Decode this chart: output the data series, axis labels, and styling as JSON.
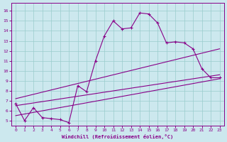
{
  "xlabel": "Windchill (Refroidissement éolien,°C)",
  "bg_color": "#cce8ee",
  "line_color": "#880088",
  "grid_color": "#99cccc",
  "x_ticks": [
    0,
    1,
    2,
    3,
    4,
    5,
    6,
    7,
    8,
    9,
    10,
    11,
    12,
    13,
    14,
    15,
    16,
    17,
    18,
    19,
    20,
    21,
    22,
    23
  ],
  "y_ticks": [
    5,
    6,
    7,
    8,
    9,
    10,
    11,
    12,
    13,
    14,
    15,
    16
  ],
  "ylim": [
    4.5,
    16.8
  ],
  "xlim": [
    -0.5,
    23.5
  ],
  "main_x": [
    0,
    1,
    2,
    3,
    4,
    5,
    6,
    7,
    8,
    9,
    10,
    11,
    12,
    13,
    14,
    15,
    16,
    17,
    18,
    19,
    20,
    21,
    22,
    23
  ],
  "main_y": [
    6.7,
    5.0,
    6.3,
    5.3,
    5.2,
    5.1,
    4.8,
    8.5,
    7.9,
    11.0,
    13.5,
    15.0,
    14.2,
    14.3,
    15.8,
    15.7,
    14.8,
    12.8,
    12.9,
    12.8,
    12.2,
    10.2,
    9.3,
    9.3
  ],
  "line1_x": [
    0,
    23
  ],
  "line1_y": [
    5.5,
    9.2
  ],
  "line2_x": [
    0,
    23
  ],
  "line2_y": [
    6.5,
    9.6
  ],
  "line3_x": [
    0,
    23
  ],
  "line3_y": [
    7.2,
    12.2
  ]
}
